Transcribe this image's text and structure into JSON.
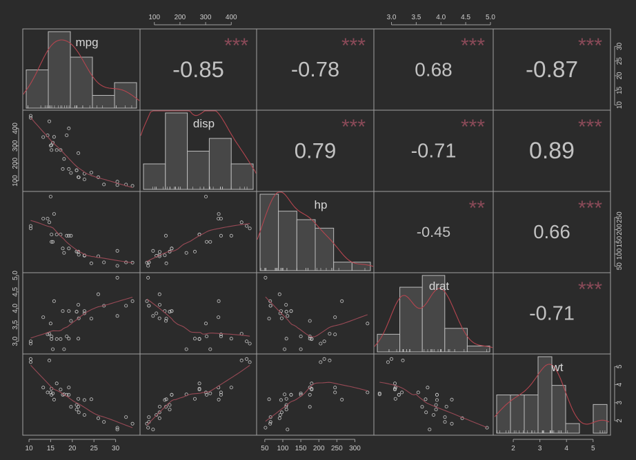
{
  "chart_data": {
    "type": "scatter-matrix",
    "title": "",
    "variables": [
      "mpg",
      "disp",
      "hp",
      "drat",
      "wt"
    ],
    "colors": {
      "background": "#2b2b2b",
      "panel_border": "#a0a0a0",
      "hist_fill": "#474747",
      "hist_border": "#bdbdbd",
      "density_line": "#b5454f",
      "smooth_line": "#9a4a56",
      "point": "#c8c8c8",
      "correlation_text": "#c2c2c2",
      "significance_stars": "#8a4a58"
    },
    "axes": {
      "mpg": {
        "range": [
          9.2,
          35.0
        ],
        "ticks": [
          "10",
          "15",
          "20",
          "25",
          "30"
        ]
      },
      "disp": {
        "range": [
          55,
          488
        ],
        "ticks": [
          "100",
          "200",
          "300",
          "400"
        ]
      },
      "hp": {
        "range": [
          35,
          345
        ],
        "ticks": [
          "50",
          "100",
          "150",
          "200",
          "250",
          "300"
        ]
      },
      "drat": {
        "range": [
          2.7,
          5.0
        ],
        "ticks": [
          "3.0",
          "3.5",
          "4.0",
          "4.5",
          "5.0"
        ]
      },
      "wt": {
        "range": [
          1.35,
          5.55
        ],
        "ticks": [
          "2",
          "3",
          "4",
          "5"
        ]
      }
    },
    "side_ticks": {
      "top": [
        {
          "var": "disp",
          "ticks": [
            "100",
            "200",
            "300",
            "400"
          ]
        },
        {
          "var": "wt",
          "ticks": [
            "3.0",
            "3.5",
            "4.0",
            "4.5",
            "5.0"
          ]
        }
      ],
      "right": [
        {
          "var": "mpg",
          "ticks": [
            "10",
            "15",
            "20",
            "25",
            "30"
          ]
        },
        {
          "var": "hp",
          "ticks": [
            "50",
            "100",
            "150",
            "200",
            "250"
          ]
        },
        {
          "var": "wt",
          "ticks": [
            "2",
            "3",
            "4",
            "5"
          ]
        }
      ],
      "left": [
        {
          "var": "disp",
          "ticks": [
            "100",
            "200",
            "300",
            "400"
          ]
        },
        {
          "var": "drat",
          "ticks": [
            "3.0",
            "3.5",
            "4.0",
            "4.5",
            "5.0"
          ]
        }
      ],
      "bottom": [
        {
          "var": "mpg",
          "ticks": [
            "10",
            "15",
            "20",
            "25",
            "30"
          ]
        },
        {
          "var": "hp",
          "ticks": [
            "50",
            "100",
            "150",
            "200",
            "250",
            "300"
          ]
        },
        {
          "var": "wt",
          "ticks": [
            "2",
            "3",
            "4",
            "5"
          ]
        }
      ]
    },
    "correlations": [
      {
        "row": 0,
        "col": 1,
        "text": "-0.85",
        "stars": "***",
        "value": -0.85
      },
      {
        "row": 0,
        "col": 2,
        "text": "-0.78",
        "stars": "***",
        "value": -0.78
      },
      {
        "row": 0,
        "col": 3,
        "text": "0.68",
        "stars": "***",
        "value": 0.68
      },
      {
        "row": 0,
        "col": 4,
        "text": "-0.87",
        "stars": "***",
        "value": -0.87
      },
      {
        "row": 1,
        "col": 2,
        "text": "0.79",
        "stars": "***",
        "value": 0.79
      },
      {
        "row": 1,
        "col": 3,
        "text": "-0.71",
        "stars": "***",
        "value": -0.71
      },
      {
        "row": 1,
        "col": 4,
        "text": "0.89",
        "stars": "***",
        "value": 0.89
      },
      {
        "row": 2,
        "col": 3,
        "text": "-0.45",
        "stars": "**",
        "value": -0.45
      },
      {
        "row": 2,
        "col": 4,
        "text": "0.66",
        "stars": "***",
        "value": 0.66
      },
      {
        "row": 3,
        "col": 4,
        "text": "-0.71",
        "stars": "***",
        "value": -0.71
      }
    ],
    "histograms": {
      "mpg": {
        "breaks": [
          10,
          15,
          20,
          25,
          30,
          35
        ],
        "counts": [
          6,
          12,
          8,
          2,
          4
        ]
      },
      "disp": {
        "breaks": [
          50,
          100,
          200,
          300,
          400,
          500
        ],
        "counts": [
          2,
          6,
          3,
          4,
          2
        ],
        "note": "uneven"
      },
      "hp": {
        "breaks": [
          50,
          100,
          150,
          200,
          250,
          300,
          350
        ],
        "counts": [
          9,
          7,
          6,
          5,
          1,
          1
        ]
      },
      "drat": {
        "breaks": [
          2.5,
          3.0,
          3.5,
          4.0,
          4.5,
          5.0
        ],
        "counts": [
          3,
          11,
          13,
          4,
          1
        ]
      },
      "wt": {
        "breaks": [
          1.5,
          2.0,
          2.5,
          3.0,
          3.5,
          4.0,
          4.5,
          5.0,
          5.5
        ],
        "counts": [
          4,
          4,
          4,
          8,
          5,
          1,
          0,
          3
        ]
      }
    },
    "observations": [
      {
        "mpg": 21.0,
        "disp": 160.0,
        "hp": 110,
        "drat": 3.9,
        "wt": 2.62
      },
      {
        "mpg": 21.0,
        "disp": 160.0,
        "hp": 110,
        "drat": 3.9,
        "wt": 2.875
      },
      {
        "mpg": 22.8,
        "disp": 108.0,
        "hp": 93,
        "drat": 3.85,
        "wt": 2.32
      },
      {
        "mpg": 21.4,
        "disp": 258.0,
        "hp": 110,
        "drat": 3.08,
        "wt": 3.215
      },
      {
        "mpg": 18.7,
        "disp": 360.0,
        "hp": 175,
        "drat": 3.15,
        "wt": 3.44
      },
      {
        "mpg": 18.1,
        "disp": 225.0,
        "hp": 105,
        "drat": 2.76,
        "wt": 3.46
      },
      {
        "mpg": 14.3,
        "disp": 360.0,
        "hp": 245,
        "drat": 3.21,
        "wt": 3.57
      },
      {
        "mpg": 24.4,
        "disp": 146.7,
        "hp": 62,
        "drat": 3.69,
        "wt": 3.19
      },
      {
        "mpg": 22.8,
        "disp": 140.8,
        "hp": 95,
        "drat": 3.92,
        "wt": 3.15
      },
      {
        "mpg": 19.2,
        "disp": 167.6,
        "hp": 123,
        "drat": 3.92,
        "wt": 3.44
      },
      {
        "mpg": 17.8,
        "disp": 167.6,
        "hp": 123,
        "drat": 3.92,
        "wt": 3.44
      },
      {
        "mpg": 16.4,
        "disp": 275.8,
        "hp": 180,
        "drat": 3.07,
        "wt": 4.07
      },
      {
        "mpg": 17.3,
        "disp": 275.8,
        "hp": 180,
        "drat": 3.07,
        "wt": 3.73
      },
      {
        "mpg": 15.2,
        "disp": 275.8,
        "hp": 180,
        "drat": 3.07,
        "wt": 3.78
      },
      {
        "mpg": 10.4,
        "disp": 472.0,
        "hp": 205,
        "drat": 2.93,
        "wt": 5.25
      },
      {
        "mpg": 10.4,
        "disp": 460.0,
        "hp": 215,
        "drat": 3.0,
        "wt": 5.424
      },
      {
        "mpg": 14.7,
        "disp": 440.0,
        "hp": 230,
        "drat": 3.23,
        "wt": 5.345
      },
      {
        "mpg": 32.4,
        "disp": 78.7,
        "hp": 66,
        "drat": 4.08,
        "wt": 2.2
      },
      {
        "mpg": 30.4,
        "disp": 75.7,
        "hp": 52,
        "drat": 4.93,
        "wt": 1.615
      },
      {
        "mpg": 33.9,
        "disp": 71.1,
        "hp": 65,
        "drat": 4.22,
        "wt": 1.835
      },
      {
        "mpg": 21.5,
        "disp": 120.1,
        "hp": 97,
        "drat": 3.7,
        "wt": 2.465
      },
      {
        "mpg": 15.5,
        "disp": 318.0,
        "hp": 150,
        "drat": 2.76,
        "wt": 3.52
      },
      {
        "mpg": 15.2,
        "disp": 304.0,
        "hp": 150,
        "drat": 3.15,
        "wt": 3.435
      },
      {
        "mpg": 13.3,
        "disp": 350.0,
        "hp": 245,
        "drat": 3.73,
        "wt": 3.84
      },
      {
        "mpg": 19.2,
        "disp": 400.0,
        "hp": 175,
        "drat": 3.08,
        "wt": 3.845
      },
      {
        "mpg": 27.3,
        "disp": 79.0,
        "hp": 66,
        "drat": 4.08,
        "wt": 1.935
      },
      {
        "mpg": 26.0,
        "disp": 120.3,
        "hp": 91,
        "drat": 4.43,
        "wt": 2.14
      },
      {
        "mpg": 30.4,
        "disp": 95.1,
        "hp": 113,
        "drat": 3.77,
        "wt": 1.513
      },
      {
        "mpg": 15.8,
        "disp": 351.0,
        "hp": 264,
        "drat": 4.22,
        "wt": 3.17
      },
      {
        "mpg": 19.7,
        "disp": 145.0,
        "hp": 175,
        "drat": 3.62,
        "wt": 2.77
      },
      {
        "mpg": 15.0,
        "disp": 301.0,
        "hp": 335,
        "drat": 3.54,
        "wt": 3.57
      },
      {
        "mpg": 21.4,
        "disp": 121.0,
        "hp": 109,
        "drat": 4.11,
        "wt": 2.78
      }
    ]
  }
}
